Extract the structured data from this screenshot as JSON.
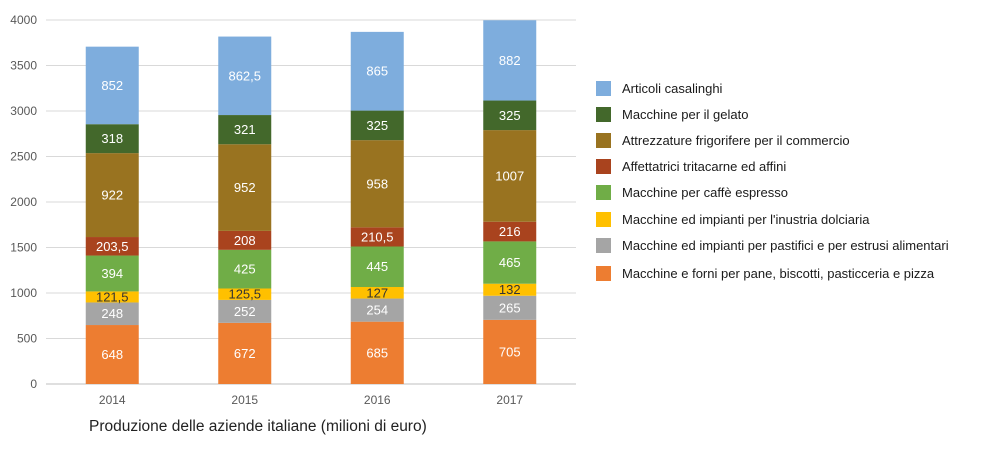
{
  "chart_data": {
    "type": "bar",
    "stacked": true,
    "title": "",
    "xlabel": "Produzione delle aziende italiane (milioni di euro)",
    "ylabel": "",
    "ylim": [
      0,
      4000
    ],
    "yticks": [
      0,
      500,
      1000,
      1500,
      2000,
      2500,
      3000,
      3500,
      4000
    ],
    "grid": "horizontal",
    "legend_position": "right",
    "categories": [
      "2014",
      "2015",
      "2016",
      "2017"
    ],
    "series": [
      {
        "name": "Macchine e forni per pane, biscotti, pasticceria e pizza",
        "color": "#ED7D31",
        "values": [
          648,
          672,
          685,
          705
        ],
        "labels": [
          "648",
          "672",
          "685",
          "705"
        ],
        "label_color": "#ffffff"
      },
      {
        "name": "Macchine ed impianti per pastifici e per estrusi alimentari",
        "color": "#A5A5A5",
        "values": [
          248,
          252,
          254,
          265
        ],
        "labels": [
          "248",
          "252",
          "254",
          "265"
        ],
        "label_color": "#ffffff"
      },
      {
        "name": "Macchine ed impianti per l'inustria dolciaria",
        "color": "#FFC000",
        "values": [
          121.5,
          125.5,
          127,
          132
        ],
        "labels": [
          "121,5",
          "125,5",
          "127",
          "132"
        ],
        "label_color": "#333333"
      },
      {
        "name": "Macchine per caffè espresso",
        "color": "#70AD47",
        "values": [
          394,
          425,
          445,
          465
        ],
        "labels": [
          "394",
          "425",
          "445",
          "465"
        ],
        "label_color": "#ffffff"
      },
      {
        "name": "Affettatrici tritacarne ed affini",
        "color": "#A9431E",
        "values": [
          203.5,
          208,
          210.5,
          216
        ],
        "labels": [
          "203,5",
          "208",
          "210,5",
          "216"
        ],
        "label_color": "#ffffff"
      },
      {
        "name": "Attrezzature frigorifere per il commercio",
        "color": "#997320",
        "values": [
          922,
          952,
          958,
          1007
        ],
        "labels": [
          "922",
          "952",
          "958",
          "1007"
        ],
        "label_color": "#ffffff"
      },
      {
        "name": "Macchine per il gelato",
        "color": "#43682B",
        "values": [
          318,
          321,
          325,
          325
        ],
        "labels": [
          "318",
          "321",
          "325",
          "325"
        ],
        "label_color": "#ffffff"
      },
      {
        "name": "Articoli casalinghi",
        "color": "#7EADDD",
        "values": [
          852,
          862.5,
          865,
          882
        ],
        "labels": [
          "852",
          "862,5",
          "865",
          "882"
        ],
        "label_color": "#ffffff"
      }
    ],
    "legend_order": [
      7,
      6,
      5,
      4,
      3,
      2,
      1,
      0
    ]
  }
}
